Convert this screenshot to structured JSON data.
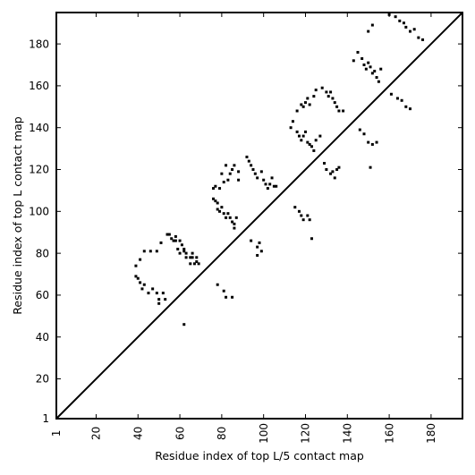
{
  "chart_data": {
    "type": "scatter",
    "title": "",
    "xlabel": "Residue index of top L/5 contact map",
    "ylabel": "Residue index of top L contact map",
    "xlim": [
      1,
      195
    ],
    "ylim": [
      1,
      195
    ],
    "xticks": [
      1,
      20,
      40,
      60,
      80,
      100,
      120,
      140,
      160,
      180
    ],
    "xtick_labels": [
      "1",
      "20",
      "40",
      "60",
      "80",
      "100",
      "120",
      "140",
      "160",
      "180"
    ],
    "yticks": [
      1,
      20,
      40,
      60,
      80,
      100,
      120,
      140,
      160,
      180
    ],
    "ytick_labels": [
      "1",
      "20",
      "40",
      "60",
      "80",
      "100",
      "120",
      "140",
      "160",
      "180"
    ],
    "diagonal": true,
    "grid": false,
    "color": "#000000",
    "series": [
      {
        "points": [
          [
            41,
            77
          ],
          [
            43,
            81
          ],
          [
            46,
            81
          ],
          [
            49,
            81
          ],
          [
            51,
            85
          ],
          [
            54,
            89
          ],
          [
            56,
            87
          ],
          [
            58,
            88
          ],
          [
            57,
            86
          ],
          [
            60,
            86
          ],
          [
            61,
            84
          ],
          [
            62,
            82
          ],
          [
            63,
            80
          ],
          [
            65,
            78
          ],
          [
            66,
            80
          ],
          [
            68,
            76
          ],
          [
            69,
            75
          ],
          [
            39,
            74
          ],
          [
            39,
            69
          ],
          [
            40,
            68
          ],
          [
            41,
            66
          ],
          [
            43,
            65
          ],
          [
            42,
            63
          ],
          [
            45,
            61
          ],
          [
            47,
            63
          ],
          [
            49,
            61
          ],
          [
            50,
            58
          ],
          [
            50,
            56
          ],
          [
            52,
            61
          ],
          [
            53,
            58
          ],
          [
            55,
            89
          ],
          [
            58,
            86
          ],
          [
            59,
            82
          ],
          [
            60,
            80
          ],
          [
            62,
            81
          ],
          [
            63,
            78
          ],
          [
            65,
            75
          ],
          [
            66,
            78
          ],
          [
            67,
            75
          ],
          [
            68,
            78
          ],
          [
            76,
            106
          ],
          [
            77,
            105
          ],
          [
            78,
            104
          ],
          [
            78,
            101
          ],
          [
            79,
            100
          ],
          [
            80,
            102
          ],
          [
            81,
            99
          ],
          [
            82,
            97
          ],
          [
            83,
            99
          ],
          [
            84,
            97
          ],
          [
            85,
            95
          ],
          [
            86,
            94
          ],
          [
            86,
            92
          ],
          [
            87,
            97
          ],
          [
            79,
            111
          ],
          [
            81,
            114
          ],
          [
            83,
            115
          ],
          [
            84,
            118
          ],
          [
            85,
            120
          ],
          [
            86,
            122
          ],
          [
            88,
            119
          ],
          [
            88,
            115
          ],
          [
            76,
            111
          ],
          [
            77,
            112
          ],
          [
            80,
            118
          ],
          [
            82,
            122
          ],
          [
            92,
            126
          ],
          [
            93,
            124
          ],
          [
            94,
            122
          ],
          [
            95,
            120
          ],
          [
            96,
            118
          ],
          [
            97,
            116
          ],
          [
            99,
            119
          ],
          [
            100,
            115
          ],
          [
            101,
            113
          ],
          [
            102,
            111
          ],
          [
            103,
            113
          ],
          [
            104,
            116
          ],
          [
            105,
            112
          ],
          [
            106,
            112
          ],
          [
            94,
            86
          ],
          [
            97,
            83
          ],
          [
            98,
            85
          ],
          [
            97,
            79
          ],
          [
            99,
            81
          ],
          [
            78,
            65
          ],
          [
            81,
            62
          ],
          [
            82,
            59
          ],
          [
            85,
            59
          ],
          [
            62,
            46
          ],
          [
            115,
            102
          ],
          [
            117,
            100
          ],
          [
            118,
            98
          ],
          [
            119,
            96
          ],
          [
            121,
            98
          ],
          [
            122,
            96
          ],
          [
            123,
            87
          ],
          [
            113,
            140
          ],
          [
            114,
            143
          ],
          [
            116,
            138
          ],
          [
            117,
            136
          ],
          [
            118,
            134
          ],
          [
            119,
            136
          ],
          [
            120,
            138
          ],
          [
            121,
            133
          ],
          [
            122,
            132
          ],
          [
            123,
            131
          ],
          [
            124,
            129
          ],
          [
            125,
            134
          ],
          [
            127,
            136
          ],
          [
            116,
            148
          ],
          [
            118,
            151
          ],
          [
            119,
            150
          ],
          [
            120,
            152
          ],
          [
            121,
            154
          ],
          [
            122,
            151
          ],
          [
            124,
            155
          ],
          [
            125,
            158
          ],
          [
            128,
            159
          ],
          [
            130,
            157
          ],
          [
            131,
            155
          ],
          [
            132,
            157
          ],
          [
            133,
            154
          ],
          [
            134,
            152
          ],
          [
            135,
            150
          ],
          [
            136,
            148
          ],
          [
            138,
            148
          ],
          [
            129,
            123
          ],
          [
            130,
            120
          ],
          [
            132,
            118
          ],
          [
            133,
            119
          ],
          [
            134,
            116
          ],
          [
            135,
            120
          ],
          [
            136,
            121
          ],
          [
            143,
            172
          ],
          [
            145,
            176
          ],
          [
            147,
            173
          ],
          [
            148,
            170
          ],
          [
            149,
            168
          ],
          [
            150,
            171
          ],
          [
            151,
            169
          ],
          [
            152,
            166
          ],
          [
            153,
            167
          ],
          [
            154,
            164
          ],
          [
            155,
            162
          ],
          [
            156,
            168
          ],
          [
            150,
            186
          ],
          [
            152,
            189
          ],
          [
            146,
            139
          ],
          [
            148,
            137
          ],
          [
            150,
            133
          ],
          [
            152,
            132
          ],
          [
            154,
            133
          ],
          [
            151,
            121
          ],
          [
            160,
            194
          ],
          [
            163,
            193
          ],
          [
            165,
            191
          ],
          [
            167,
            190
          ],
          [
            168,
            188
          ],
          [
            170,
            186
          ],
          [
            172,
            187
          ],
          [
            174,
            183
          ],
          [
            176,
            182
          ],
          [
            161,
            156
          ],
          [
            164,
            154
          ],
          [
            166,
            153
          ],
          [
            168,
            150
          ],
          [
            170,
            149
          ]
        ]
      }
    ]
  }
}
